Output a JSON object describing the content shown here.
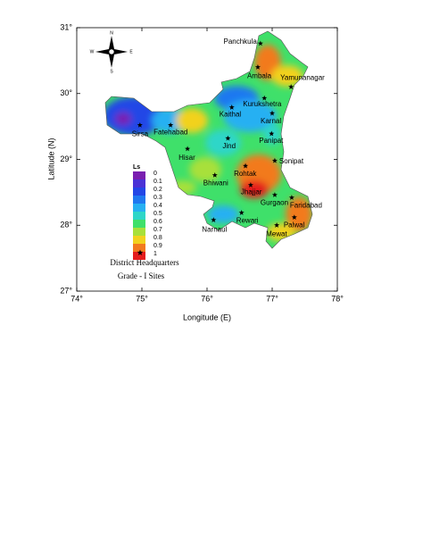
{
  "chart_data": {
    "type": "map",
    "xlabel": "Longitude (E)",
    "ylabel": "Latitude (N)",
    "xlim": [
      74,
      78
    ],
    "ylim": [
      27,
      31
    ],
    "xticks": [
      {
        "value": 74,
        "label": "74°"
      },
      {
        "value": 75,
        "label": "75°"
      },
      {
        "value": 76,
        "label": "76°"
      },
      {
        "value": 77,
        "label": "77°"
      },
      {
        "value": 78,
        "label": "78°"
      }
    ],
    "yticks": [
      {
        "value": 27,
        "label": "27°"
      },
      {
        "value": 28,
        "label": "28°"
      },
      {
        "value": 29,
        "label": "29°"
      },
      {
        "value": 30,
        "label": "30°"
      },
      {
        "value": 31,
        "label": "31°"
      }
    ],
    "compass": [
      "N",
      "E",
      "S",
      "W"
    ],
    "legend": {
      "title": "Ls",
      "levels": [
        0,
        0.1,
        0.2,
        0.3,
        0.4,
        0.5,
        0.6,
        0.7,
        0.8,
        0.9,
        1
      ],
      "colors": [
        "#7a1fb0",
        "#4a32d6",
        "#2346e6",
        "#1f78f0",
        "#26b0f2",
        "#2fd6c8",
        "#3fe06a",
        "#a8e03a",
        "#f2d21e",
        "#f27a1e",
        "#e41c1c"
      ]
    },
    "points": {
      "name": "District Headquarters",
      "names": [
        "Panchkula",
        "Ambala",
        "Yamunanagar",
        "Kurukshetra",
        "Kaithal",
        "Karnal",
        "Sirsa",
        "Fatehabad",
        "Panipat",
        "Jind",
        "Hisar",
        "Sonipat",
        "Rohtak",
        "Bhiwani",
        "Jhajjar",
        "Gurgaon",
        "Faridabad",
        "Palwal",
        "Rewari",
        "Narnaul",
        "Mewat"
      ],
      "lon": [
        76.82,
        76.78,
        77.29,
        76.88,
        76.38,
        77.0,
        74.97,
        75.44,
        76.99,
        76.32,
        75.7,
        77.04,
        76.59,
        76.12,
        76.67,
        77.04,
        77.3,
        77.34,
        76.53,
        76.1,
        77.07
      ],
      "lat": [
        30.76,
        30.4,
        30.1,
        29.93,
        29.79,
        29.7,
        29.52,
        29.52,
        29.39,
        29.32,
        29.16,
        28.98,
        28.9,
        28.76,
        28.61,
        28.46,
        28.42,
        28.12,
        28.19,
        28.08,
        28.0
      ]
    },
    "note": "Grade - I Sites"
  }
}
